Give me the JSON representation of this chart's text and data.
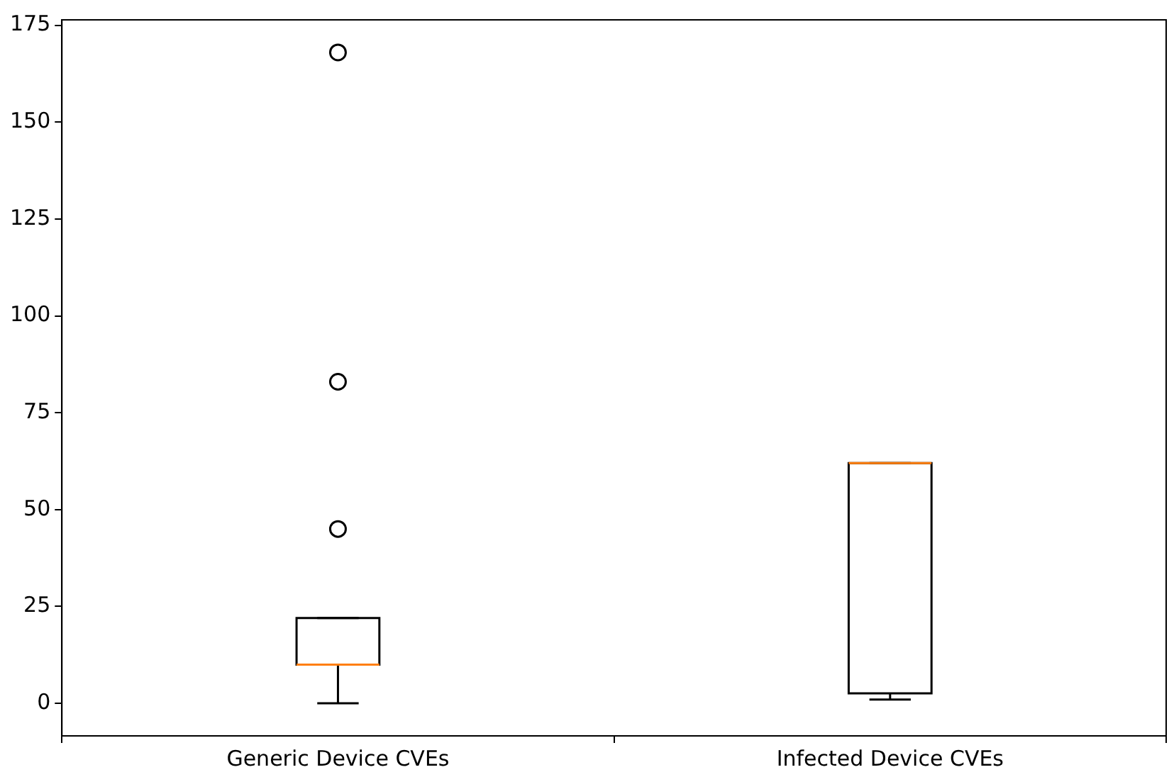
{
  "chart_data": {
    "type": "box",
    "categories": [
      "Generic Device CVEs",
      "Infected Device CVEs"
    ],
    "boxes": [
      {
        "low": 0,
        "q1": 10,
        "median": 10,
        "q3": 22,
        "high": 22,
        "outliers": [
          45,
          83,
          168
        ]
      },
      {
        "low": 1,
        "q1": 2.6,
        "median": 62,
        "q3": 62,
        "high": 62
      }
    ],
    "ylim": [
      -8.4,
      176.4
    ],
    "yticks": [
      0,
      25,
      50,
      75,
      100,
      125,
      150,
      175
    ]
  }
}
